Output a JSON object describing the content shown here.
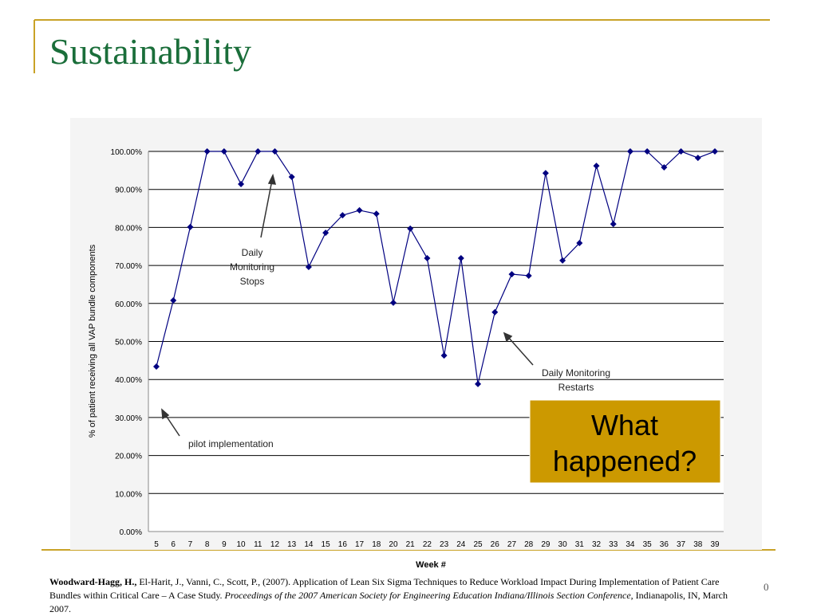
{
  "slide": {
    "title": "Sustainability",
    "page_number": "0"
  },
  "chart_data": {
    "type": "line",
    "x_label": "Week #",
    "y_label": "% of patient receiving all VAP bundle components",
    "categories": [
      "5",
      "6",
      "7",
      "8",
      "9",
      "10",
      "11",
      "12",
      "13",
      "14",
      "15",
      "16",
      "17",
      "18",
      "20",
      "21",
      "22",
      "23",
      "24",
      "25",
      "26",
      "27",
      "28",
      "29",
      "30",
      "31",
      "32",
      "33",
      "34",
      "35",
      "36",
      "37",
      "38",
      "39"
    ],
    "values": [
      43.4,
      60.8,
      80.1,
      100,
      100,
      91.4,
      100,
      100,
      93.3,
      69.6,
      78.6,
      83.2,
      84.5,
      83.6,
      60.2,
      79.7,
      71.9,
      46.3,
      71.9,
      38.8,
      57.7,
      67.7,
      67.3,
      94.3,
      71.3,
      75.9,
      96.2,
      80.9,
      100,
      100,
      95.8,
      100,
      98.3,
      100
    ],
    "color": "#000080",
    "ylim": [
      0,
      100
    ],
    "yticks": [
      {
        "value": 0,
        "label": "0.00%"
      },
      {
        "value": 10,
        "label": "10.00%"
      },
      {
        "value": 20,
        "label": "20.00%"
      },
      {
        "value": 30,
        "label": "30.00%"
      },
      {
        "value": 40,
        "label": "40.00%"
      },
      {
        "value": 50,
        "label": "50.00%"
      },
      {
        "value": 60,
        "label": "60.00%"
      },
      {
        "value": 70,
        "label": "70.00%"
      },
      {
        "value": 80,
        "label": "80.00%"
      },
      {
        "value": 90,
        "label": "90.00%"
      },
      {
        "value": 100,
        "label": "100.00%"
      }
    ],
    "grid": true,
    "annotations": [
      {
        "lines": [
          "Daily",
          "Monitoring",
          "Stops"
        ]
      },
      {
        "lines": [
          "Daily Monitoring",
          "Restarts"
        ]
      },
      {
        "lines": [
          "pilot implementation"
        ]
      }
    ]
  },
  "callout": {
    "lines": [
      "What",
      "happened?"
    ]
  },
  "citation": {
    "author": "Woodward-Hagg, H.,",
    "text": " El-Harit, J., Vanni, C., Scott, P., (2007). Application of Lean Six Sigma Techniques to Reduce Workload Impact During Implementation of Patient Care Bundles within Critical Care – A Case Study. ",
    "venue": "Proceedings of the 2007 American Society for Engineering Education Indiana/Illinois Section Conference",
    "place": ", Indianapolis, IN, March 2007."
  }
}
